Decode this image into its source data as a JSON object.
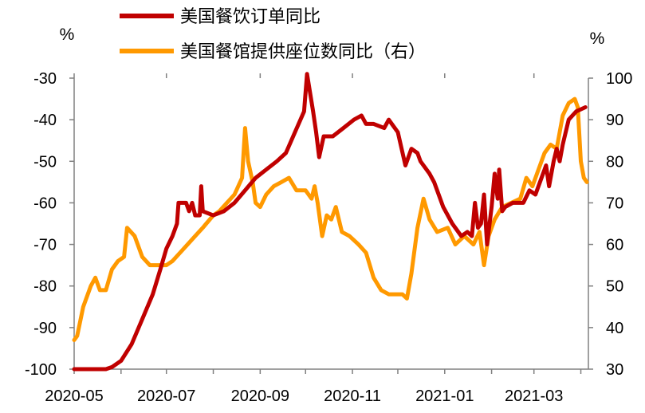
{
  "chart_data": {
    "type": "line",
    "left_unit": "%",
    "right_unit": "%",
    "x_tick_labels": [
      "2020-05",
      "2020-07",
      "2020-09",
      "2020-11",
      "2021-01",
      "2021-03"
    ],
    "left_axis": {
      "ylim": [
        -100,
        -30
      ],
      "ticks": [
        -100,
        -90,
        -80,
        -70,
        -60,
        -50,
        -40,
        -30
      ]
    },
    "right_axis": {
      "ylim": [
        30,
        100
      ],
      "ticks": [
        30,
        40,
        50,
        60,
        70,
        80,
        90,
        100
      ]
    },
    "series": [
      {
        "name": "美国餐饮订单同比",
        "axis": "left",
        "color": "#C00000",
        "points": [
          [
            "2020-05-01",
            -100
          ],
          [
            "2020-05-14",
            -100
          ],
          [
            "2020-05-22",
            -100
          ],
          [
            "2020-05-26",
            -99.5
          ],
          [
            "2020-06-01",
            -98
          ],
          [
            "2020-06-08",
            -94
          ],
          [
            "2020-06-15",
            -88
          ],
          [
            "2020-06-22",
            -82
          ],
          [
            "2020-06-27",
            -76
          ],
          [
            "2020-07-01",
            -71
          ],
          [
            "2020-07-05",
            -68
          ],
          [
            "2020-07-08",
            -65
          ],
          [
            "2020-07-09",
            -60
          ],
          [
            "2020-07-14",
            -60
          ],
          [
            "2020-07-16",
            -62
          ],
          [
            "2020-07-18",
            -60
          ],
          [
            "2020-07-20",
            -63
          ],
          [
            "2020-07-23",
            -63
          ],
          [
            "2020-07-24",
            -56
          ],
          [
            "2020-07-25",
            -62
          ],
          [
            "2020-08-01",
            -63
          ],
          [
            "2020-08-08",
            -62
          ],
          [
            "2020-08-15",
            -60
          ],
          [
            "2020-08-22",
            -57
          ],
          [
            "2020-08-29",
            -54
          ],
          [
            "2020-09-05",
            -52
          ],
          [
            "2020-09-12",
            -50
          ],
          [
            "2020-09-18",
            -48
          ],
          [
            "2020-09-24",
            -43
          ],
          [
            "2020-09-30",
            -38
          ],
          [
            "2020-10-02",
            -29
          ],
          [
            "2020-10-06",
            -38
          ],
          [
            "2020-10-08",
            -43
          ],
          [
            "2020-10-10",
            -49
          ],
          [
            "2020-10-13",
            -44
          ],
          [
            "2020-10-19",
            -44
          ],
          [
            "2020-10-26",
            -42
          ],
          [
            "2020-11-02",
            -40
          ],
          [
            "2020-11-07",
            -39
          ],
          [
            "2020-11-10",
            -41
          ],
          [
            "2020-11-15",
            -41
          ],
          [
            "2020-11-22",
            -42
          ],
          [
            "2020-11-25",
            -40
          ],
          [
            "2020-12-01",
            -43
          ],
          [
            "2020-12-06",
            -51
          ],
          [
            "2020-12-10",
            -47
          ],
          [
            "2020-12-14",
            -48
          ],
          [
            "2020-12-16",
            -50
          ],
          [
            "2020-12-22",
            -53
          ],
          [
            "2020-12-25",
            -55
          ],
          [
            "2020-12-31",
            -61
          ],
          [
            "2021-01-06",
            -65
          ],
          [
            "2021-01-12",
            -68
          ],
          [
            "2021-01-16",
            -67
          ],
          [
            "2021-01-19",
            -68
          ],
          [
            "2021-01-21",
            -60
          ],
          [
            "2021-01-23",
            -66
          ],
          [
            "2021-01-25",
            -65
          ],
          [
            "2021-01-27",
            -58
          ],
          [
            "2021-01-29",
            -70
          ],
          [
            "2021-02-01",
            -61
          ],
          [
            "2021-02-03",
            -53
          ],
          [
            "2021-02-05",
            -59
          ],
          [
            "2021-02-06",
            -52
          ],
          [
            "2021-02-08",
            -62
          ],
          [
            "2021-02-10",
            -61
          ],
          [
            "2021-02-15",
            -60
          ],
          [
            "2021-02-22",
            -60
          ],
          [
            "2021-02-26",
            -57
          ],
          [
            "2021-03-02",
            -58
          ],
          [
            "2021-03-06",
            -54
          ],
          [
            "2021-03-09",
            -51
          ],
          [
            "2021-03-11",
            -56
          ],
          [
            "2021-03-14",
            -50
          ],
          [
            "2021-03-16",
            -47
          ],
          [
            "2021-03-18",
            -50
          ],
          [
            "2021-03-20",
            -46
          ],
          [
            "2021-03-24",
            -40
          ],
          [
            "2021-03-29",
            -38
          ],
          [
            "2021-04-01",
            -37.5
          ],
          [
            "2021-04-04",
            -37
          ]
        ]
      },
      {
        "name": "美国餐馆提供座位数同比（右）",
        "axis": "right",
        "color": "#FF9900",
        "points": [
          [
            "2020-05-01",
            37
          ],
          [
            "2020-05-03",
            38
          ],
          [
            "2020-05-07",
            45
          ],
          [
            "2020-05-12",
            50
          ],
          [
            "2020-05-15",
            52
          ],
          [
            "2020-05-18",
            49
          ],
          [
            "2020-05-22",
            49
          ],
          [
            "2020-05-26",
            54
          ],
          [
            "2020-05-30",
            56
          ],
          [
            "2020-06-03",
            57
          ],
          [
            "2020-06-05",
            64
          ],
          [
            "2020-06-10",
            62
          ],
          [
            "2020-06-15",
            57
          ],
          [
            "2020-06-20",
            55
          ],
          [
            "2020-06-25",
            55
          ],
          [
            "2020-07-01",
            55
          ],
          [
            "2020-07-05",
            56
          ],
          [
            "2020-07-10",
            58
          ],
          [
            "2020-07-15",
            60
          ],
          [
            "2020-07-20",
            62
          ],
          [
            "2020-07-25",
            64
          ],
          [
            "2020-08-01",
            67
          ],
          [
            "2020-08-05",
            68
          ],
          [
            "2020-08-10",
            70
          ],
          [
            "2020-08-15",
            72
          ],
          [
            "2020-08-20",
            76
          ],
          [
            "2020-08-22",
            88
          ],
          [
            "2020-08-24",
            80
          ],
          [
            "2020-08-27",
            75
          ],
          [
            "2020-08-29",
            70
          ],
          [
            "2020-09-01",
            69
          ],
          [
            "2020-09-05",
            72
          ],
          [
            "2020-09-10",
            74
          ],
          [
            "2020-09-15",
            75
          ],
          [
            "2020-09-20",
            76
          ],
          [
            "2020-09-25",
            73
          ],
          [
            "2020-10-01",
            73
          ],
          [
            "2020-10-05",
            71
          ],
          [
            "2020-10-07",
            74
          ],
          [
            "2020-10-09",
            70
          ],
          [
            "2020-10-12",
            62
          ],
          [
            "2020-10-15",
            67
          ],
          [
            "2020-10-18",
            66
          ],
          [
            "2020-10-21",
            69
          ],
          [
            "2020-10-25",
            63
          ],
          [
            "2020-10-30",
            62
          ],
          [
            "2020-11-05",
            60
          ],
          [
            "2020-11-10",
            58
          ],
          [
            "2020-11-15",
            52
          ],
          [
            "2020-11-20",
            49
          ],
          [
            "2020-11-25",
            48
          ],
          [
            "2020-12-01",
            48
          ],
          [
            "2020-12-04",
            48
          ],
          [
            "2020-12-07",
            47
          ],
          [
            "2020-12-10",
            53
          ],
          [
            "2020-12-14",
            64
          ],
          [
            "2020-12-18",
            71
          ],
          [
            "2020-12-22",
            66
          ],
          [
            "2020-12-27",
            63
          ],
          [
            "2021-01-03",
            64
          ],
          [
            "2021-01-08",
            60
          ],
          [
            "2021-01-14",
            62
          ],
          [
            "2021-01-20",
            60
          ],
          [
            "2021-01-24",
            63
          ],
          [
            "2021-01-27",
            55
          ],
          [
            "2021-01-30",
            62
          ],
          [
            "2021-02-03",
            66
          ],
          [
            "2021-02-08",
            69
          ],
          [
            "2021-02-14",
            70
          ],
          [
            "2021-02-20",
            71
          ],
          [
            "2021-02-24",
            76
          ],
          [
            "2021-02-28",
            74
          ],
          [
            "2021-03-04",
            78
          ],
          [
            "2021-03-08",
            82
          ],
          [
            "2021-03-12",
            84
          ],
          [
            "2021-03-16",
            83
          ],
          [
            "2021-03-20",
            91
          ],
          [
            "2021-03-24",
            94
          ],
          [
            "2021-03-28",
            95
          ],
          [
            "2021-03-30",
            93
          ],
          [
            "2021-04-01",
            80
          ],
          [
            "2021-04-03",
            76
          ],
          [
            "2021-04-05",
            75
          ]
        ]
      }
    ]
  }
}
